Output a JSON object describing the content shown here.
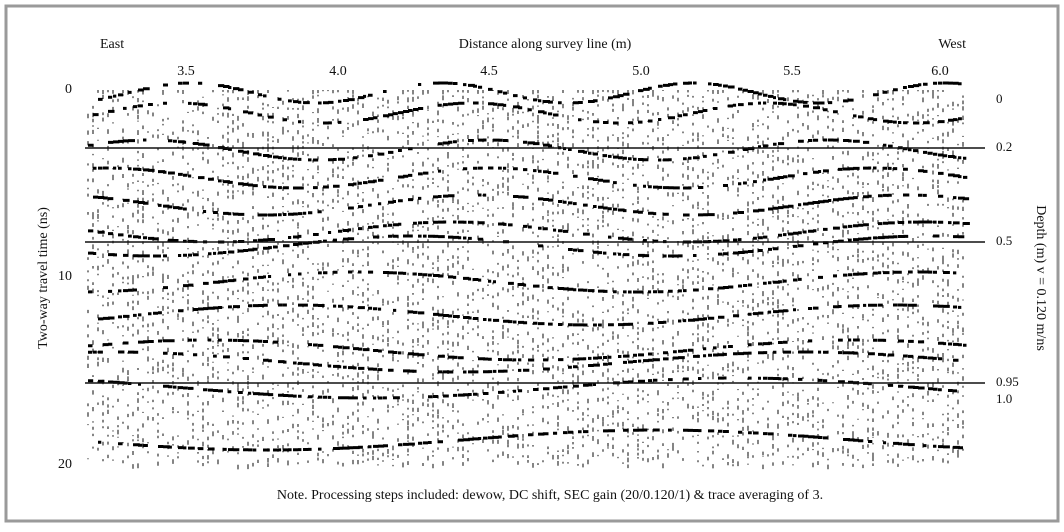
{
  "figure": {
    "east_label": "East",
    "west_label": "West",
    "x_axis": {
      "title": "Distance along survey line (m)",
      "ticks": [
        "3.5",
        "4.0",
        "4.5",
        "5.0",
        "5.5",
        "6.0"
      ]
    },
    "left_axis": {
      "title": "Two-way travel time (ns)",
      "ticks": [
        "0",
        "10",
        "20"
      ]
    },
    "right_axis": {
      "title": "Depth (m) v = 0.120 m/ns",
      "ticks": [
        "0",
        "0.2",
        "0.5",
        "0.95",
        "1.0"
      ]
    },
    "note": "Note. Processing steps included: dewow, DC shift, SEC gain (20/0.120/1) & trace averaging of 3."
  }
}
